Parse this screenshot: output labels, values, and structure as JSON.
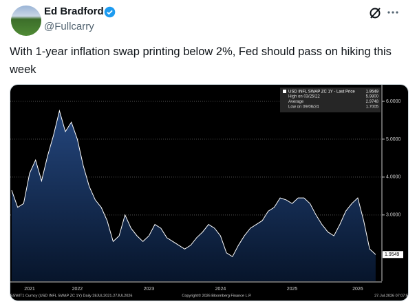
{
  "tweet": {
    "author_name": "Ed Bradford",
    "handle": "@Fullcarry",
    "text": "With 1-year inflation swap printing below 2%, Fed should pass on hiking this week"
  },
  "chart_data": {
    "type": "area",
    "legend": {
      "title": "USD INFL SWAP ZC 1Y - Last Price",
      "last": "1.9549",
      "rows": [
        {
          "label": "High on 03/25/22",
          "value": "5.9800"
        },
        {
          "label": "Average",
          "value": "2.9748"
        },
        {
          "label": "Low on 09/06/24",
          "value": "1.7005"
        }
      ]
    },
    "categories": [
      null,
      null,
      null,
      "2021",
      null,
      null,
      null,
      null,
      null,
      null,
      null,
      "2022",
      null,
      null,
      null,
      null,
      null,
      null,
      null,
      null,
      null,
      null,
      null,
      "2023",
      null,
      null,
      null,
      null,
      null,
      null,
      null,
      null,
      null,
      null,
      null,
      "2024",
      null,
      null,
      null,
      null,
      null,
      null,
      null,
      null,
      null,
      null,
      null,
      "2025",
      null,
      null,
      null,
      null,
      null,
      null,
      null,
      null,
      null,
      null,
      "2026",
      null,
      null,
      null
    ],
    "values": [
      3.65,
      3.2,
      3.3,
      4.1,
      4.45,
      3.9,
      4.55,
      5.1,
      5.75,
      5.2,
      5.45,
      5.0,
      4.3,
      3.75,
      3.4,
      3.2,
      2.85,
      2.3,
      2.45,
      3.0,
      2.65,
      2.45,
      2.3,
      2.45,
      2.75,
      2.65,
      2.4,
      2.3,
      2.2,
      2.1,
      2.2,
      2.4,
      2.55,
      2.75,
      2.65,
      2.45,
      2.0,
      1.9,
      2.2,
      2.45,
      2.65,
      2.75,
      2.85,
      3.1,
      3.2,
      3.45,
      3.4,
      3.3,
      3.45,
      3.45,
      3.3,
      3.0,
      2.75,
      2.55,
      2.45,
      2.75,
      3.1,
      3.3,
      3.45,
      2.85,
      2.1,
      1.9549
    ],
    "color": "#ffffff",
    "ylim": [
      1.25,
      6.4
    ],
    "yticks": [
      {
        "value": 3,
        "label": "3.0000"
      },
      {
        "value": 4,
        "label": "4.0000"
      },
      {
        "value": 5,
        "label": "5.0000"
      },
      {
        "value": 6,
        "label": "6.0000"
      }
    ],
    "grid": true,
    "footer": {
      "left": "SSWIT1 Curncy (USD INFL SWAP ZC 1Y) Daily 28JUL2021-27JUL2026",
      "center": "Copyright© 2026 Bloomberg Finance L.P.",
      "right": "27-Jul-2026 07:07:5"
    }
  }
}
